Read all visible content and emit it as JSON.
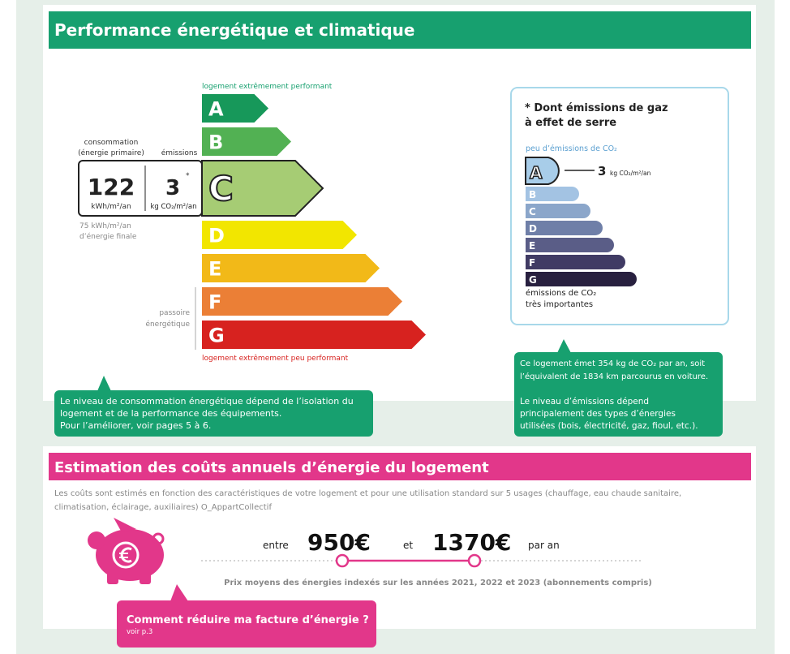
{
  "energy": {
    "title": "Performance énergétique et climatique",
    "top_label": "logement extrêmement performant",
    "bottom_label": "logement extrêmement peu performant",
    "classes": [
      "A",
      "B",
      "C",
      "D",
      "E",
      "F",
      "G"
    ],
    "rating": "C",
    "consumption_label": "consommation",
    "consumption_sublabel": "(énergie primaire)",
    "emissions_label": "émissions",
    "consumption_value": "122",
    "consumption_unit": "kWh/m²/an",
    "emissions_value": "3",
    "emissions_mark": "*",
    "emissions_unit": "kg CO₂/m²/an",
    "final_energy": [
      "75 kWh/m²/an",
      "d’énergie finale"
    ],
    "sieve_label": [
      "passoire",
      "énergétique"
    ],
    "callout": [
      "Le niveau de consommation énergétique dépend de l’isolation du",
      "logement et de la performance des équipements.",
      "Pour l’améliorer, voir pages 5 à 6."
    ]
  },
  "climate": {
    "title": [
      "* Dont émissions de gaz",
      "à effet de serre"
    ],
    "top_label": "peu d’émissions de CO₂",
    "classes": [
      "A",
      "B",
      "C",
      "D",
      "E",
      "F",
      "G"
    ],
    "rating": "A",
    "value": "3",
    "unit": "kg CO₂/m²/an",
    "bottom_label": [
      "émissions de CO₂",
      "très importantes"
    ],
    "callout": [
      "Ce logement émet 354 kg de CO₂ par an, soit",
      "l’équivalent de 1834 km parcourus en voiture.",
      "Le niveau d’émissions dépend",
      "principalement des types d’énergies",
      "utilisées (bois, électricité, gaz, fioul, etc.)."
    ]
  },
  "costs": {
    "title": "Estimation des coûts annuels d’énergie du logement",
    "description": [
      "Les coûts sont estimés en fonction des caractéristiques de votre logement et pour une utilisation standard sur 5 usages (chauffage, eau chaude sanitaire,",
      "climatisation, éclairage, auxiliaires) O_AppartCollectif"
    ],
    "from_label": "entre",
    "min": "950€",
    "and_label": "et",
    "max": "1370€",
    "per_label": "par an",
    "note": "Prix moyens des énergies indexés sur les années 2021, 2022 et 2023 (abonnements compris)",
    "callout_title": "Comment réduire ma facture d’énergie ?",
    "callout_subtitle": "voir p.3"
  }
}
